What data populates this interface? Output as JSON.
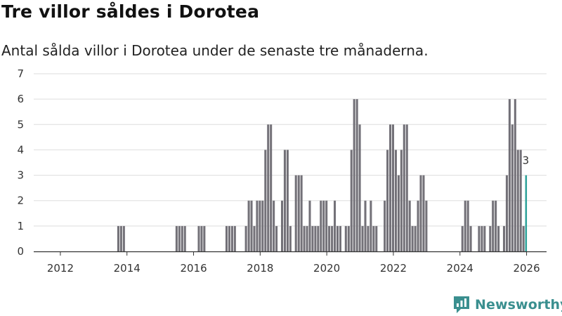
{
  "title": "Tre villor såldes i Dorotea",
  "subtitle": "Antal sålda villor i Dorotea under de senaste tre månaderna.",
  "brand": "Newsworthy",
  "colors": {
    "bar": "#737178",
    "highlight": "#2aa198",
    "grid": "#dddddd",
    "axis": "#333333",
    "brand": "#3a8f8f"
  },
  "chart_data": {
    "type": "bar",
    "title": "Tre villor såldes i Dorotea",
    "subtitle": "Antal sålda villor i Dorotea under de senaste tre månaderna.",
    "xlabel": "",
    "ylabel": "",
    "ylim": [
      0,
      7
    ],
    "yticks": [
      "0",
      "1",
      "2",
      "3",
      "4",
      "5",
      "6",
      "7"
    ],
    "xlim": [
      2011.2,
      2026.6
    ],
    "xticks": [
      "2012",
      "2014",
      "2016",
      "2018",
      "2020",
      "2022",
      "2024",
      "2026"
    ],
    "grid": true,
    "bar_width_years": 0.0833,
    "highlight_label": "3",
    "bars": [
      {
        "x": 2013.75,
        "y": 1
      },
      {
        "x": 2013.833,
        "y": 1
      },
      {
        "x": 2013.917,
        "y": 1
      },
      {
        "x": 2015.5,
        "y": 1
      },
      {
        "x": 2015.583,
        "y": 1
      },
      {
        "x": 2015.667,
        "y": 1
      },
      {
        "x": 2015.75,
        "y": 1
      },
      {
        "x": 2016.167,
        "y": 1
      },
      {
        "x": 2016.25,
        "y": 1
      },
      {
        "x": 2016.333,
        "y": 1
      },
      {
        "x": 2017.0,
        "y": 1
      },
      {
        "x": 2017.083,
        "y": 1
      },
      {
        "x": 2017.167,
        "y": 1
      },
      {
        "x": 2017.25,
        "y": 1
      },
      {
        "x": 2017.583,
        "y": 1
      },
      {
        "x": 2017.667,
        "y": 2
      },
      {
        "x": 2017.75,
        "y": 2
      },
      {
        "x": 2017.833,
        "y": 1
      },
      {
        "x": 2017.917,
        "y": 2
      },
      {
        "x": 2018.0,
        "y": 2
      },
      {
        "x": 2018.083,
        "y": 2
      },
      {
        "x": 2018.167,
        "y": 4
      },
      {
        "x": 2018.25,
        "y": 5
      },
      {
        "x": 2018.333,
        "y": 5
      },
      {
        "x": 2018.417,
        "y": 2
      },
      {
        "x": 2018.5,
        "y": 1
      },
      {
        "x": 2018.667,
        "y": 2
      },
      {
        "x": 2018.75,
        "y": 4
      },
      {
        "x": 2018.833,
        "y": 4
      },
      {
        "x": 2018.917,
        "y": 1
      },
      {
        "x": 2019.083,
        "y": 3
      },
      {
        "x": 2019.167,
        "y": 3
      },
      {
        "x": 2019.25,
        "y": 3
      },
      {
        "x": 2019.333,
        "y": 1
      },
      {
        "x": 2019.417,
        "y": 1
      },
      {
        "x": 2019.5,
        "y": 2
      },
      {
        "x": 2019.583,
        "y": 1
      },
      {
        "x": 2019.667,
        "y": 1
      },
      {
        "x": 2019.75,
        "y": 1
      },
      {
        "x": 2019.833,
        "y": 2
      },
      {
        "x": 2019.917,
        "y": 2
      },
      {
        "x": 2020.0,
        "y": 2
      },
      {
        "x": 2020.083,
        "y": 1
      },
      {
        "x": 2020.167,
        "y": 1
      },
      {
        "x": 2020.25,
        "y": 2
      },
      {
        "x": 2020.333,
        "y": 1
      },
      {
        "x": 2020.417,
        "y": 1
      },
      {
        "x": 2020.583,
        "y": 1
      },
      {
        "x": 2020.667,
        "y": 1
      },
      {
        "x": 2020.75,
        "y": 4
      },
      {
        "x": 2020.833,
        "y": 6
      },
      {
        "x": 2020.917,
        "y": 6
      },
      {
        "x": 2021.0,
        "y": 5
      },
      {
        "x": 2021.083,
        "y": 1
      },
      {
        "x": 2021.167,
        "y": 2
      },
      {
        "x": 2021.25,
        "y": 1
      },
      {
        "x": 2021.333,
        "y": 2
      },
      {
        "x": 2021.417,
        "y": 1
      },
      {
        "x": 2021.5,
        "y": 1
      },
      {
        "x": 2021.75,
        "y": 2
      },
      {
        "x": 2021.833,
        "y": 4
      },
      {
        "x": 2021.917,
        "y": 5
      },
      {
        "x": 2022.0,
        "y": 5
      },
      {
        "x": 2022.083,
        "y": 4
      },
      {
        "x": 2022.167,
        "y": 3
      },
      {
        "x": 2022.25,
        "y": 4
      },
      {
        "x": 2022.333,
        "y": 5
      },
      {
        "x": 2022.417,
        "y": 5
      },
      {
        "x": 2022.5,
        "y": 2
      },
      {
        "x": 2022.583,
        "y": 1
      },
      {
        "x": 2022.667,
        "y": 1
      },
      {
        "x": 2022.75,
        "y": 2
      },
      {
        "x": 2022.833,
        "y": 3
      },
      {
        "x": 2022.917,
        "y": 3
      },
      {
        "x": 2023.0,
        "y": 2
      },
      {
        "x": 2024.083,
        "y": 1
      },
      {
        "x": 2024.167,
        "y": 2
      },
      {
        "x": 2024.25,
        "y": 2
      },
      {
        "x": 2024.333,
        "y": 1
      },
      {
        "x": 2024.583,
        "y": 1
      },
      {
        "x": 2024.667,
        "y": 1
      },
      {
        "x": 2024.75,
        "y": 1
      },
      {
        "x": 2024.917,
        "y": 1
      },
      {
        "x": 2025.0,
        "y": 2
      },
      {
        "x": 2025.083,
        "y": 2
      },
      {
        "x": 2025.167,
        "y": 1
      },
      {
        "x": 2025.333,
        "y": 1
      },
      {
        "x": 2025.417,
        "y": 3
      },
      {
        "x": 2025.5,
        "y": 6
      },
      {
        "x": 2025.583,
        "y": 5
      },
      {
        "x": 2025.667,
        "y": 6
      },
      {
        "x": 2025.75,
        "y": 4
      },
      {
        "x": 2025.833,
        "y": 4
      },
      {
        "x": 2025.917,
        "y": 1
      },
      {
        "x": 2026.0,
        "y": 3,
        "highlight": true
      }
    ]
  }
}
